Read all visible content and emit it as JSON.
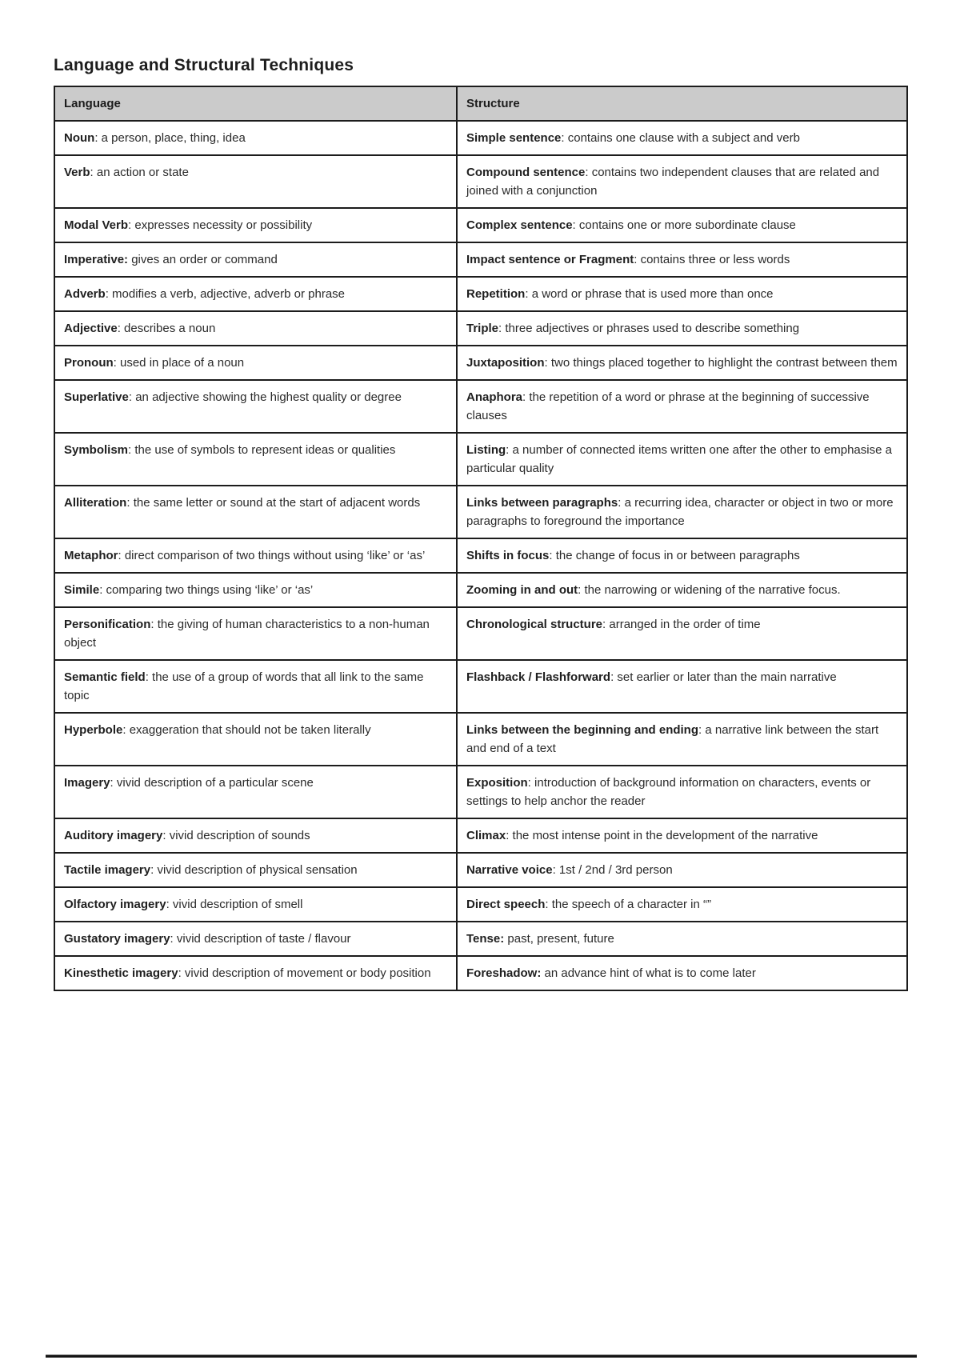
{
  "page": {
    "title": "Language and Structural Techniques"
  },
  "colors": {
    "header_bg": "#cbcbcb",
    "border": "#1c1c1c",
    "text": "#2a2a2a"
  },
  "table": {
    "headers": [
      "Language",
      "Structure"
    ],
    "rows": [
      {
        "lang": {
          "term": "Noun",
          "def": "a person, place, thing, idea"
        },
        "struct": {
          "term": "Simple sentence",
          "def": "contains one clause with a subject and verb"
        }
      },
      {
        "lang": {
          "term": "Verb",
          "def": "an action or state"
        },
        "struct": {
          "term": "Compound sentence",
          "def": "contains two independent clauses that are related and joined with a conjunction"
        }
      },
      {
        "lang": {
          "term": "Modal Verb",
          "def": "expresses necessity or possibility"
        },
        "struct": {
          "term": "Complex sentence",
          "def": "contains one or more subordinate clause"
        }
      },
      {
        "lang": {
          "term": "Imperative:",
          "def": "gives an order or command"
        },
        "struct": {
          "term": "Impact sentence or Fragment",
          "def": "contains three or less words"
        }
      },
      {
        "lang": {
          "term": "Adverb",
          "def": "modifies a verb, adjective, adverb or phrase"
        },
        "struct": {
          "term": "Repetition",
          "def": "a word or phrase that is used more than once"
        }
      },
      {
        "lang": {
          "term": "Adjective",
          "def": "describes a noun"
        },
        "struct": {
          "term": "Triple",
          "def": "three adjectives or phrases used to describe something"
        }
      },
      {
        "lang": {
          "term": "Pronoun",
          "def": "used in place of a noun"
        },
        "struct": {
          "term": "Juxtaposition",
          "def": "two things placed together to highlight the contrast between them"
        }
      },
      {
        "lang": {
          "term": "Superlative",
          "def": "an adjective showing the highest quality or degree"
        },
        "struct": {
          "term": "Anaphora",
          "def": "the repetition of a word or phrase at the beginning of successive clauses"
        }
      },
      {
        "lang": {
          "term": "Symbolism",
          "def": "the use of symbols to represent ideas or qualities"
        },
        "struct": {
          "term": "Listing",
          "def": "a number of connected items written one after the other to emphasise a particular quality"
        }
      },
      {
        "lang": {
          "term": "Alliteration",
          "def": "the same letter or sound at the start of adjacent words"
        },
        "struct": {
          "term": "Links between paragraphs",
          "def": "a recurring idea, character or object in two or more paragraphs to foreground the importance"
        }
      },
      {
        "lang": {
          "term": "Metaphor",
          "def": "direct comparison of two things without using ‘like’ or ‘as’"
        },
        "struct": {
          "term": "Shifts in focus",
          "def": "the change of focus in or between paragraphs"
        }
      },
      {
        "lang": {
          "term": "Simile",
          "def": "comparing two things using ‘like’ or ‘as’"
        },
        "struct": {
          "term": "Zooming in and out",
          "def": "the narrowing or widening of the narrative focus."
        }
      },
      {
        "lang": {
          "term": "Personification",
          "def": "the giving of human characteristics to a non-human object"
        },
        "struct": {
          "term": "Chronological structure",
          "def": "arranged in the order of time"
        }
      },
      {
        "lang": {
          "term": "Semantic field",
          "def": "the use of a group of words that all link to the same topic"
        },
        "struct": {
          "term": "Flashback / Flashforward",
          "def": "set earlier or later than the main narrative"
        }
      },
      {
        "lang": {
          "term": "Hyperbole",
          "def": "exaggeration that should not be taken literally"
        },
        "struct": {
          "term": "Links between the beginning and ending",
          "def": "a narrative link between the start and end of a text"
        }
      },
      {
        "lang": {
          "term": "Imagery",
          "def": "vivid description of a particular scene"
        },
        "struct": {
          "term": "Exposition",
          "def": "introduction of background information on characters, events or settings to help anchor the reader"
        }
      },
      {
        "lang": {
          "term": "Auditory imagery",
          "def": "vivid description of sounds"
        },
        "struct": {
          "term": "Climax",
          "def": "the most intense point in the development of the narrative"
        }
      },
      {
        "lang": {
          "term": "Tactile imagery",
          "def": "vivid description of physical sensation"
        },
        "struct": {
          "term": "Narrative voice",
          "def": "1st / 2nd / 3rd person"
        }
      },
      {
        "lang": {
          "term": "Olfactory imagery",
          "def": "vivid description of smell"
        },
        "struct": {
          "term": "Direct speech",
          "def": "the speech of a character in “”"
        }
      },
      {
        "lang": {
          "term": "Gustatory imagery",
          "def": "vivid description of taste / flavour"
        },
        "struct": {
          "term": "Tense:",
          "def": "past, present, future"
        }
      },
      {
        "lang": {
          "term": "Kinesthetic imagery",
          "def": "vivid description of movement or body position"
        },
        "struct": {
          "term": "Foreshadow:",
          "def": "an advance hint of what is to come later"
        }
      }
    ]
  }
}
